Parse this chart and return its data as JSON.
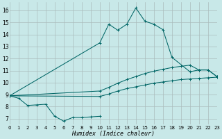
{
  "xlabel": "Humidex (Indice chaleur)",
  "bg_color": "#c8e8e8",
  "grid_color": "#aabcbc",
  "line_color": "#006666",
  "xlim": [
    0,
    23
  ],
  "ylim": [
    6.5,
    16.7
  ],
  "xticks": [
    0,
    1,
    2,
    3,
    4,
    5,
    6,
    7,
    8,
    9,
    10,
    11,
    12,
    13,
    14,
    15,
    16,
    17,
    18,
    19,
    20,
    21,
    22,
    23
  ],
  "yticks": [
    7,
    8,
    9,
    10,
    11,
    12,
    13,
    14,
    15,
    16
  ],
  "curve_low": {
    "x": [
      0,
      1,
      2,
      3,
      4,
      5,
      6,
      7,
      8,
      9,
      10
    ],
    "y": [
      8.9,
      8.7,
      8.1,
      8.15,
      8.2,
      7.2,
      6.8,
      7.1,
      7.1,
      7.15,
      7.2
    ]
  },
  "curve_main": {
    "x": [
      0,
      10,
      11,
      12,
      13,
      14,
      15,
      16,
      17,
      18,
      20,
      21,
      22,
      23
    ],
    "y": [
      8.9,
      13.3,
      14.85,
      14.35,
      14.85,
      16.2,
      15.1,
      14.85,
      14.4,
      12.1,
      10.9,
      11.05,
      11.05,
      10.5
    ]
  },
  "curve_upper_mid": {
    "x": [
      0,
      10,
      11,
      12,
      13,
      14,
      15,
      16,
      17,
      18,
      19,
      20,
      21,
      22,
      23
    ],
    "y": [
      8.9,
      9.3,
      9.6,
      9.95,
      10.25,
      10.5,
      10.75,
      10.95,
      11.1,
      11.25,
      11.35,
      11.45,
      11.05,
      11.05,
      10.5
    ]
  },
  "curve_lower_mid": {
    "x": [
      0,
      10,
      11,
      12,
      13,
      14,
      15,
      16,
      17,
      18,
      19,
      20,
      21,
      22,
      23
    ],
    "y": [
      8.9,
      8.85,
      9.05,
      9.3,
      9.5,
      9.65,
      9.8,
      9.95,
      10.05,
      10.15,
      10.25,
      10.3,
      10.35,
      10.4,
      10.45
    ]
  }
}
